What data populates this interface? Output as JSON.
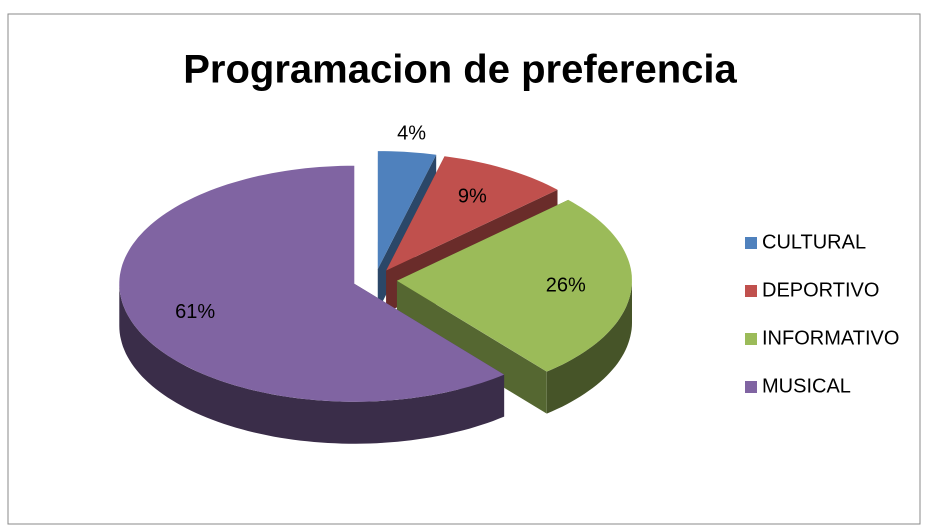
{
  "chart_data": {
    "type": "pie",
    "title": "Programacion de preferencia",
    "categories": [
      "CULTURAL",
      "DEPORTIVO",
      "INFORMATIVO",
      "MUSICAL"
    ],
    "values": [
      4,
      9,
      26,
      61
    ],
    "value_labels": [
      "4%",
      "9%",
      "26%",
      "61%"
    ],
    "colors": [
      "#4f81bd",
      "#c0504d",
      "#9bbb59",
      "#8064a2"
    ],
    "legend": "right",
    "exploded": true,
    "3d": true
  }
}
